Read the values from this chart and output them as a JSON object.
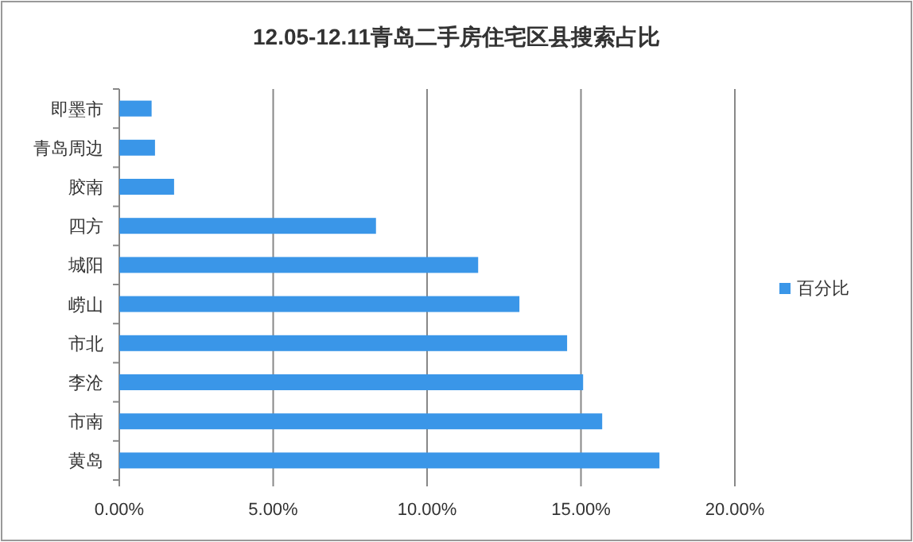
{
  "chart_data": {
    "type": "bar",
    "orientation": "horizontal",
    "title": "12.05-12.11青岛二手房住宅区县搜索占比",
    "categories": [
      "即墨市",
      "青岛周边",
      "胶南",
      "四方",
      "城阳",
      "崂山",
      "市北",
      "李沧",
      "市南",
      "黄岛"
    ],
    "series": [
      {
        "name": "百分比",
        "color": "#3a96e8",
        "values": [
          1.05,
          1.16,
          1.78,
          8.34,
          11.66,
          13.0,
          14.55,
          15.07,
          15.69,
          17.55
        ]
      }
    ],
    "xlim": [
      0,
      20
    ],
    "xticks": [
      {
        "value": 0,
        "label": "0.00%"
      },
      {
        "value": 5,
        "label": "5.00%"
      },
      {
        "value": 10,
        "label": "10.00%"
      },
      {
        "value": 15,
        "label": "15.00%"
      },
      {
        "value": 20,
        "label": "20.00%"
      }
    ],
    "grid": "x",
    "legend": "right"
  }
}
